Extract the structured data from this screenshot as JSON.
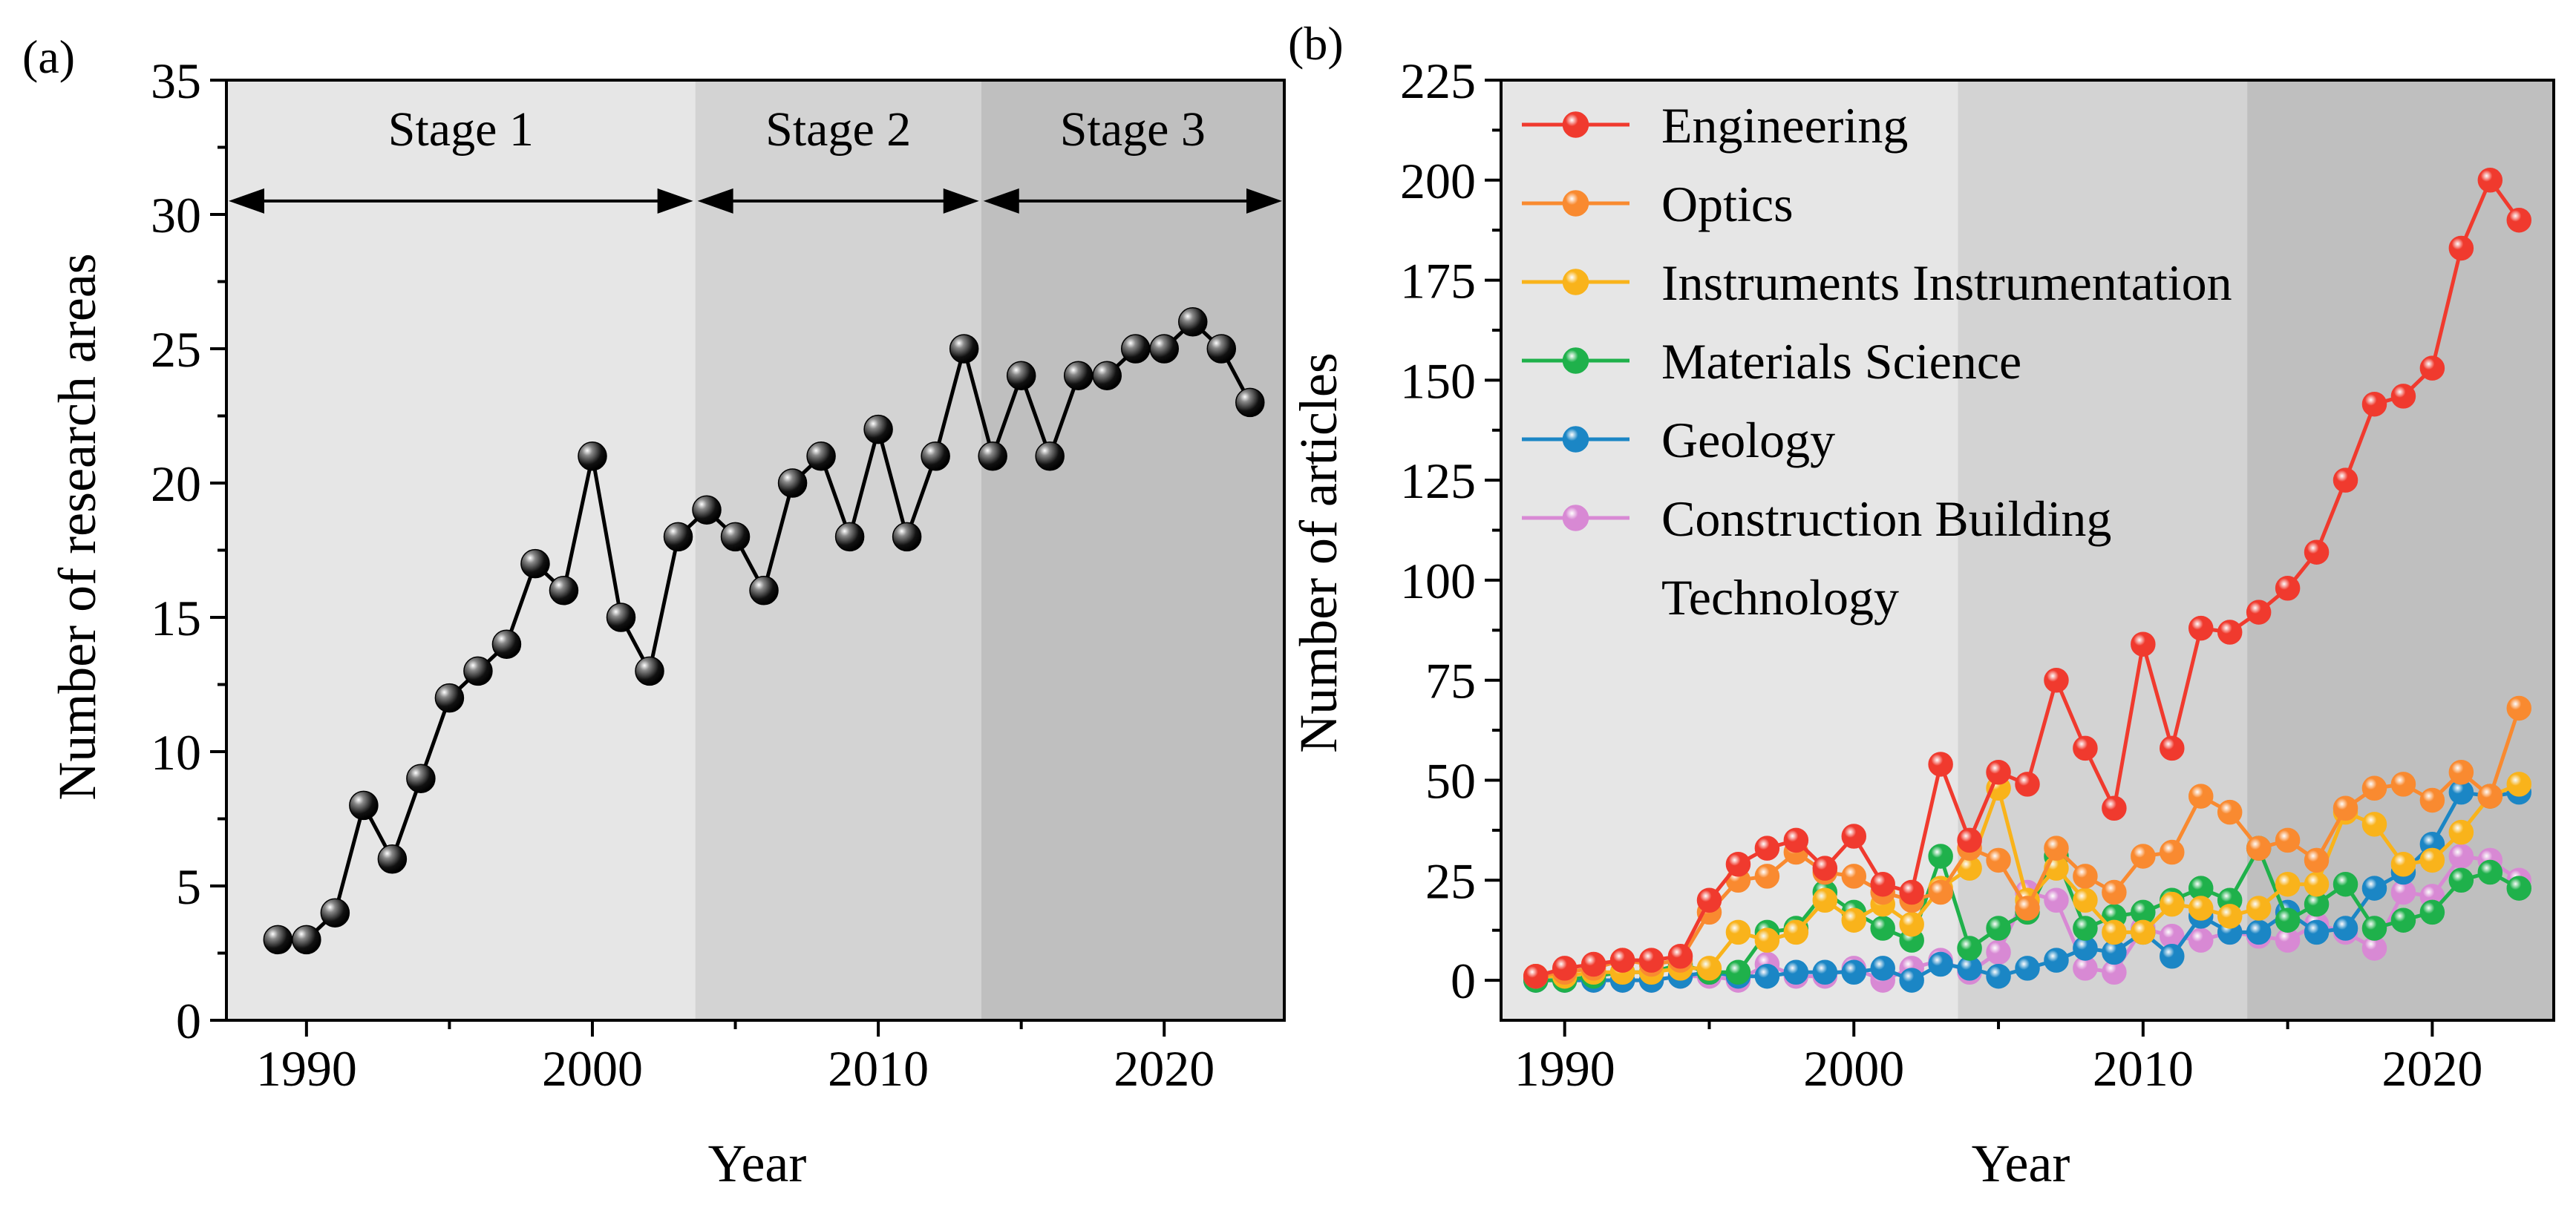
{
  "chart_data": [
    {
      "panel_label": "(a)",
      "type": "line",
      "xlabel": "Year",
      "ylabel": "Number of research areas",
      "xlim": [
        1987.2,
        2024.2
      ],
      "ylim": [
        0,
        35
      ],
      "xticks": [
        1990,
        2000,
        2010,
        2020
      ],
      "yticks": [
        0,
        5,
        10,
        15,
        20,
        25,
        30,
        35
      ],
      "marker_color": "#000000",
      "stages": [
        {
          "name": "Stage 1",
          "start": 1987.2,
          "end": 2003.6,
          "color": "#e6e6e6"
        },
        {
          "name": "Stage 2",
          "start": 2003.6,
          "end": 2013.6,
          "color": "#d3d3d3"
        },
        {
          "name": "Stage 3",
          "start": 2013.6,
          "end": 2024.2,
          "color": "#bfbfbf"
        }
      ],
      "arrow_level": 30.5,
      "x": [
        1989,
        1990,
        1991,
        1992,
        1993,
        1994,
        1995,
        1996,
        1997,
        1998,
        1999,
        2000,
        2001,
        2002,
        2003,
        2004,
        2005,
        2006,
        2007,
        2008,
        2009,
        2010,
        2011,
        2012,
        2013,
        2014,
        2015,
        2016,
        2017,
        2018,
        2019,
        2020,
        2021,
        2022,
        2023
      ],
      "values": [
        3,
        3,
        4,
        8,
        6,
        9,
        12,
        13,
        14,
        17,
        16,
        21,
        15,
        13,
        18,
        19,
        18,
        16,
        20,
        21,
        18,
        22,
        18,
        21,
        25,
        21,
        24,
        21,
        24,
        24,
        25,
        25,
        26,
        25,
        23
      ]
    },
    {
      "panel_label": "(b)",
      "type": "line",
      "xlabel": "Year",
      "ylabel": "Number of articles",
      "xlim": [
        1987.8,
        2024.2
      ],
      "ylim": [
        -10,
        225
      ],
      "xticks": [
        1990,
        2000,
        2010,
        2020
      ],
      "yticks": [
        0,
        25,
        50,
        75,
        100,
        125,
        150,
        175,
        200,
        225
      ],
      "stages": [
        {
          "start": 1987.8,
          "end": 2003.6,
          "color": "#e6e6e6"
        },
        {
          "start": 2003.6,
          "end": 2013.6,
          "color": "#d3d3d3"
        },
        {
          "start": 2013.6,
          "end": 2024.2,
          "color": "#bfbfbf"
        }
      ],
      "legend_position": "top-left",
      "x": [
        1989,
        1990,
        1991,
        1992,
        1993,
        1994,
        1995,
        1996,
        1997,
        1998,
        1999,
        2000,
        2001,
        2002,
        2003,
        2004,
        2005,
        2006,
        2007,
        2008,
        2009,
        2010,
        2011,
        2012,
        2013,
        2014,
        2015,
        2016,
        2017,
        2018,
        2019,
        2020,
        2021,
        2022,
        2023
      ],
      "series": [
        {
          "name": "Engineering",
          "color": "#f03a2e",
          "values": [
            1,
            3,
            4,
            5,
            5,
            6,
            20,
            29,
            33,
            35,
            28,
            36,
            24,
            22,
            54,
            35,
            52,
            49,
            75,
            58,
            43,
            84,
            58,
            88,
            87,
            92,
            98,
            107,
            125,
            144,
            146,
            153,
            183,
            200,
            190
          ]
        },
        {
          "name": "Optics",
          "color": "#f98a30",
          "values": [
            1,
            2,
            3,
            5,
            4,
            5,
            17,
            25,
            26,
            32,
            27,
            26,
            22,
            20,
            22,
            33,
            30,
            18,
            33,
            26,
            22,
            31,
            32,
            46,
            42,
            33,
            35,
            30,
            43,
            48,
            49,
            45,
            52,
            46,
            68
          ]
        },
        {
          "name": "Instruments Instrumentation",
          "color": "#f9b31b",
          "values": [
            1,
            1,
            2,
            2,
            2,
            3,
            3,
            12,
            10,
            12,
            20,
            15,
            19,
            14,
            23,
            28,
            48,
            20,
            28,
            20,
            12,
            12,
            19,
            18,
            16,
            18,
            24,
            24,
            42,
            39,
            29,
            30,
            37,
            46,
            49
          ]
        },
        {
          "name": "Materials Science",
          "color": "#1fb14b",
          "values": [
            0,
            0,
            1,
            2,
            2,
            4,
            2,
            2,
            12,
            13,
            22,
            17,
            13,
            10,
            31,
            8,
            13,
            17,
            31,
            13,
            16,
            17,
            20,
            23,
            20,
            33,
            15,
            19,
            24,
            13,
            15,
            17,
            25,
            27,
            23
          ]
        },
        {
          "name": "Geology",
          "color": "#1b86c5",
          "values": [
            0,
            0,
            0,
            0,
            0,
            1,
            2,
            1,
            1,
            2,
            2,
            2,
            3,
            0,
            4,
            3,
            1,
            3,
            5,
            8,
            7,
            12,
            6,
            16,
            12,
            12,
            17,
            12,
            13,
            23,
            27,
            34,
            47,
            46,
            47
          ]
        },
        {
          "name": "Construction Building",
          "name_line2": "Technology",
          "color": "#d889d4",
          "values": [
            0,
            0,
            0,
            0,
            0,
            1,
            1,
            0,
            4,
            1,
            1,
            3,
            0,
            3,
            5,
            2,
            7,
            22,
            20,
            3,
            2,
            13,
            11,
            10,
            12,
            11,
            10,
            14,
            12,
            8,
            22,
            21,
            31,
            30,
            25
          ]
        }
      ]
    }
  ]
}
